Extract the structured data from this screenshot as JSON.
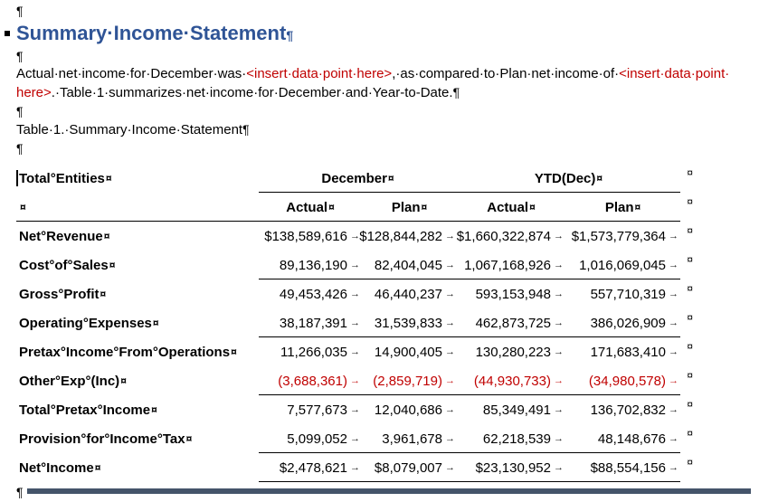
{
  "marks": {
    "pilcrow": "¶",
    "cell_end": "¤",
    "tab": "→"
  },
  "heading": {
    "text": "Summary·Income·Statement"
  },
  "body": {
    "line1_black1": "Actual·net·income·for·December·was·",
    "line1_red1": "<insert·data·point·here>",
    "line1_black2": ",·as·compared·to·Plan·net·income·of·",
    "line1_red2": "<insert·data·point·",
    "line2_red": "here>",
    "line2_black": ".·Table·1·summarizes·net·income·for·December·and·Year-to-Date."
  },
  "caption": "Table·1.·Summary·Income·Statement",
  "table": {
    "corner_label": "Total°Entities",
    "group_december": "December",
    "group_ytd": "YTD(Dec)",
    "col_headers": [
      "Actual",
      "Plan",
      "Actual",
      "Plan"
    ],
    "rows": [
      {
        "label": "Net°Revenue",
        "v": [
          "$138,589,616",
          "$128,844,282",
          "$1,660,322,874",
          "$1,573,779,364"
        ]
      },
      {
        "label": "Cost°of°Sales",
        "v": [
          "89,136,190",
          "82,404,045",
          "1,067,168,926",
          "1,016,069,045"
        ]
      },
      {
        "label": "Gross°Profit",
        "v": [
          "49,453,426",
          "46,440,237",
          "593,153,948",
          "557,710,319"
        ]
      },
      {
        "label": "Operating°Expenses",
        "v": [
          "38,187,391",
          "31,539,833",
          "462,873,725",
          "386,026,909"
        ]
      },
      {
        "label": "Pretax°Income°From°Operations",
        "v": [
          "11,266,035",
          "14,900,405",
          "130,280,223",
          "171,683,410"
        ]
      },
      {
        "label": "Other°Exp°(Inc)",
        "v": [
          "(3,688,361)",
          "(2,859,719)",
          "(44,930,733)",
          "(34,980,578)"
        ]
      },
      {
        "label": "Total°Pretax°Income",
        "v": [
          "7,577,673",
          "12,040,686",
          "85,349,491",
          "136,702,832"
        ]
      },
      {
        "label": "Provision°for°Income°Tax",
        "v": [
          "5,099,052",
          "3,961,678",
          "62,218,539",
          "48,148,676"
        ]
      },
      {
        "label": "Net°Income",
        "v": [
          "$2,478,621",
          "$8,079,007",
          "$23,130,952",
          "$88,554,156"
        ]
      }
    ]
  },
  "colors": {
    "heading_blue": "#2F5496",
    "negative_red": "#C00000",
    "placeholder_red": "#C00000",
    "bottom_bar_blue": "#44546A"
  }
}
